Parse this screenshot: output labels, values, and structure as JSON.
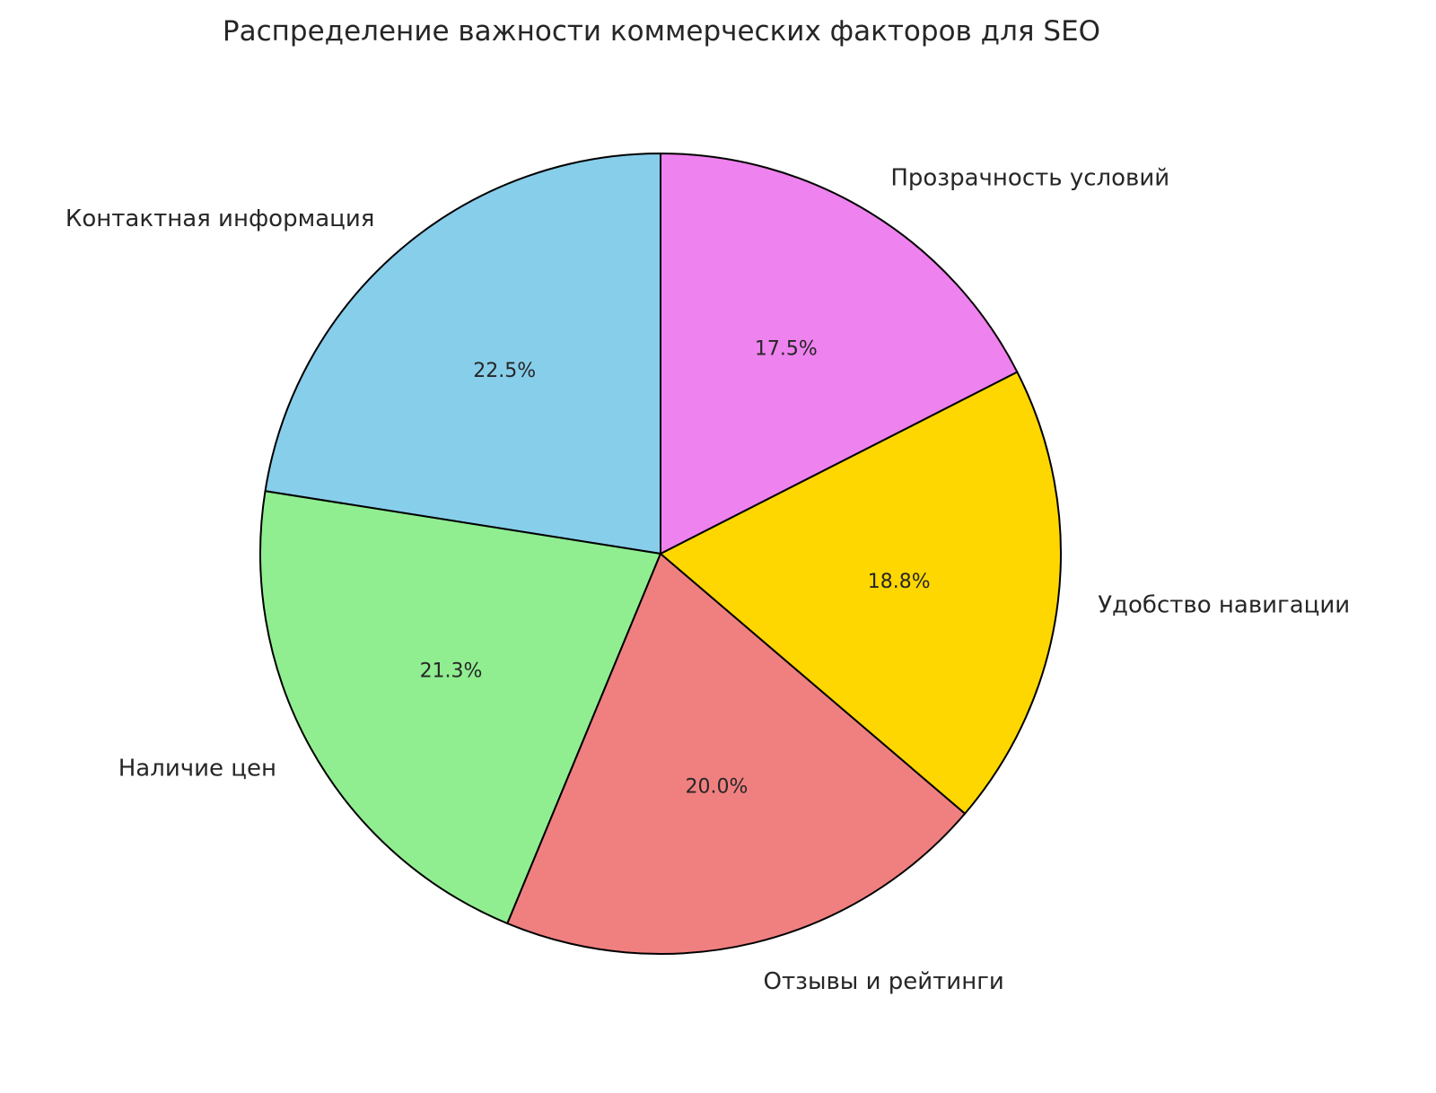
{
  "chart_data": {
    "type": "pie",
    "title": "Распределение важности коммерческих факторов для SEO",
    "start_angle_deg": 90,
    "direction": "counterclockwise",
    "edge_color": "#000000",
    "slices": [
      {
        "label": "Контактная информация",
        "value": 22.5,
        "pct_label": "22.5%",
        "color": "#87ceeb"
      },
      {
        "label": "Наличие цен",
        "value": 21.25,
        "pct_label": "21.3%",
        "color": "#90ee90"
      },
      {
        "label": "Отзывы и рейтинги",
        "value": 20.0,
        "pct_label": "20.0%",
        "color": "#f08080"
      },
      {
        "label": "Удобство навигации",
        "value": 18.75,
        "pct_label": "18.8%",
        "color": "#ffd700"
      },
      {
        "label": "Прозрачность условий",
        "value": 17.5,
        "pct_label": "17.5%",
        "color": "#ee82ee"
      }
    ]
  }
}
